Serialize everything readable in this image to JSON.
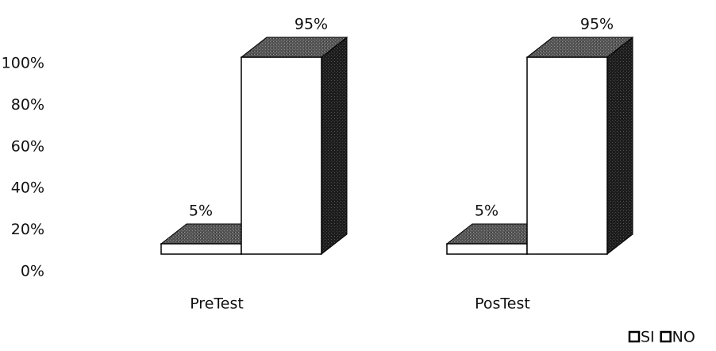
{
  "chart_data": {
    "type": "bar3d",
    "categories": [
      "PreTest",
      "PosTest"
    ],
    "series": [
      {
        "name": "SI",
        "color": "#ffffff",
        "values": [
          5,
          5
        ],
        "value_labels": [
          "5%",
          "5%"
        ]
      },
      {
        "name": "NO",
        "color": "#ffffff",
        "values": [
          95,
          95
        ],
        "value_labels": [
          "95%",
          "95%"
        ]
      }
    ],
    "ylim": [
      0,
      100
    ],
    "yticks": [
      {
        "value": 0,
        "label": "0%"
      },
      {
        "value": 20,
        "label": "20%"
      },
      {
        "value": 40,
        "label": "40%"
      },
      {
        "value": 60,
        "label": "60%"
      },
      {
        "value": 80,
        "label": "80%"
      },
      {
        "value": 100,
        "label": "100%"
      }
    ],
    "legend": "bottom-right"
  }
}
